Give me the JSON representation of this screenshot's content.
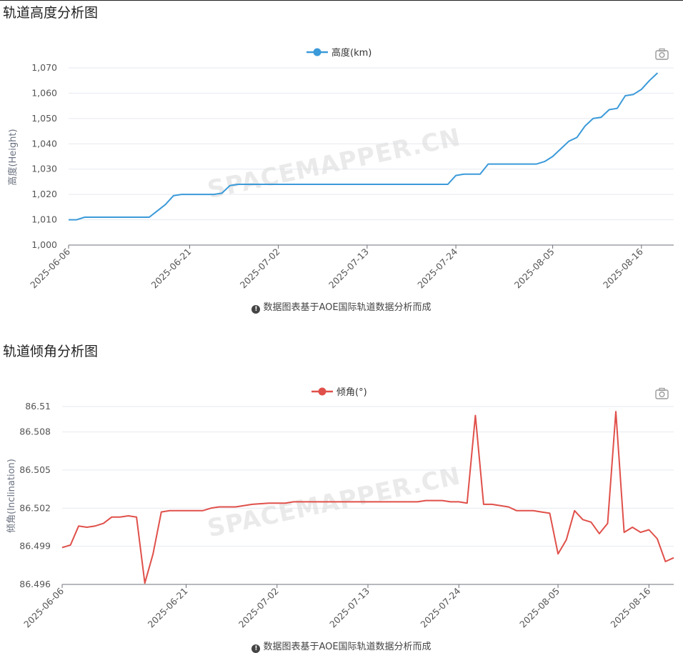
{
  "altitude": {
    "title": "轨道高度分析图",
    "footnote": "数据图表基于AOE国际轨道数据分析而成",
    "watermark": "SPACEMAPPER.CN",
    "icon": "camera-icon",
    "color": "#3b9ad9"
  },
  "inclination": {
    "title": "轨道倾角分析图",
    "footnote": "数据图表基于AOE国际轨道数据分析而成",
    "watermark": "SPACEMAPPER.CN",
    "icon": "camera-icon",
    "color": "#e0504a"
  },
  "chart_data": [
    {
      "type": "line",
      "title": "",
      "xlabel": "",
      "ylabel": "高度(Height)",
      "legend": "top-center",
      "grid": true,
      "x_start": "2025-06-06",
      "x_end": "2025-08-20",
      "ylim": [
        1000,
        1070
      ],
      "yticks": [
        1000,
        1010,
        1020,
        1030,
        1040,
        1050,
        1060,
        1070
      ],
      "ytick_labels": [
        "1,000",
        "1,010",
        "1,020",
        "1,030",
        "1,040",
        "1,050",
        "1,060",
        "1,070"
      ],
      "xtick_labels": [
        "2025-06-06",
        "2025-06-21",
        "2025-07-02",
        "2025-07-13",
        "2025-07-24",
        "2025-08-05",
        "2025-08-16"
      ],
      "series": [
        {
          "name": "高度(km)",
          "points": [
            [
              "2025-06-06",
              1010
            ],
            [
              "2025-06-07",
              1010
            ],
            [
              "2025-06-08",
              1011
            ],
            [
              "2025-06-09",
              1011
            ],
            [
              "2025-06-10",
              1011
            ],
            [
              "2025-06-11",
              1011
            ],
            [
              "2025-06-12",
              1011
            ],
            [
              "2025-06-13",
              1011
            ],
            [
              "2025-06-14",
              1011
            ],
            [
              "2025-06-15",
              1011
            ],
            [
              "2025-06-16",
              1011
            ],
            [
              "2025-06-17",
              1013.5
            ],
            [
              "2025-06-18",
              1016
            ],
            [
              "2025-06-19",
              1019.5
            ],
            [
              "2025-06-20",
              1020
            ],
            [
              "2025-06-21",
              1020
            ],
            [
              "2025-06-22",
              1020
            ],
            [
              "2025-06-23",
              1020
            ],
            [
              "2025-06-24",
              1020
            ],
            [
              "2025-06-25",
              1020.5
            ],
            [
              "2025-06-26",
              1023.5
            ],
            [
              "2025-06-27",
              1024
            ],
            [
              "2025-07-04",
              1024
            ],
            [
              "2025-07-10",
              1024
            ],
            [
              "2025-07-16",
              1024
            ],
            [
              "2025-07-22",
              1024
            ],
            [
              "2025-07-23",
              1024
            ],
            [
              "2025-07-24",
              1027.5
            ],
            [
              "2025-07-25",
              1028
            ],
            [
              "2025-07-26",
              1028
            ],
            [
              "2025-07-27",
              1028
            ],
            [
              "2025-07-28",
              1032
            ],
            [
              "2025-07-29",
              1032
            ],
            [
              "2025-07-31",
              1032
            ],
            [
              "2025-08-01",
              1032
            ],
            [
              "2025-08-02",
              1032
            ],
            [
              "2025-08-03",
              1032
            ],
            [
              "2025-08-04",
              1033
            ],
            [
              "2025-08-05",
              1035
            ],
            [
              "2025-08-06",
              1038
            ],
            [
              "2025-08-07",
              1041
            ],
            [
              "2025-08-08",
              1042.5
            ],
            [
              "2025-08-09",
              1047
            ],
            [
              "2025-08-10",
              1050
            ],
            [
              "2025-08-11",
              1050.5
            ],
            [
              "2025-08-12",
              1053.5
            ],
            [
              "2025-08-13",
              1054
            ],
            [
              "2025-08-14",
              1059
            ],
            [
              "2025-08-15",
              1059.5
            ],
            [
              "2025-08-16",
              1061.5
            ],
            [
              "2025-08-17",
              1065
            ],
            [
              "2025-08-18",
              1068
            ]
          ]
        }
      ]
    },
    {
      "type": "line",
      "title": "",
      "xlabel": "",
      "ylabel": "倾角(Inclination)",
      "legend": "top-center",
      "grid": true,
      "x_start": "2025-06-06",
      "x_end": "2025-08-19",
      "ylim": [
        86.496,
        86.51
      ],
      "yticks": [
        86.496,
        86.499,
        86.502,
        86.505,
        86.508,
        86.51
      ],
      "ytick_labels": [
        "86.496",
        "86.499",
        "86.502",
        "86.505",
        "86.508",
        "86.51"
      ],
      "xtick_labels": [
        "2025-06-06",
        "2025-06-21",
        "2025-07-02",
        "2025-07-13",
        "2025-07-24",
        "2025-08-05",
        "2025-08-16"
      ],
      "series": [
        {
          "name": "倾角(°)",
          "points": [
            [
              "2025-06-06",
              86.4989
            ],
            [
              "2025-06-07",
              86.4991
            ],
            [
              "2025-06-08",
              86.5006
            ],
            [
              "2025-06-09",
              86.5005
            ],
            [
              "2025-06-10",
              86.5006
            ],
            [
              "2025-06-11",
              86.5008
            ],
            [
              "2025-06-12",
              86.5013
            ],
            [
              "2025-06-13",
              86.5013
            ],
            [
              "2025-06-14",
              86.5014
            ],
            [
              "2025-06-15",
              86.5013
            ],
            [
              "2025-06-16",
              86.4961
            ],
            [
              "2025-06-17",
              86.4984
            ],
            [
              "2025-06-18",
              86.5017
            ],
            [
              "2025-06-19",
              86.5018
            ],
            [
              "2025-06-21",
              86.5018
            ],
            [
              "2025-06-23",
              86.5018
            ],
            [
              "2025-06-24",
              86.502
            ],
            [
              "2025-06-25",
              86.5021
            ],
            [
              "2025-06-27",
              86.5021
            ],
            [
              "2025-06-29",
              86.5023
            ],
            [
              "2025-07-01",
              86.5024
            ],
            [
              "2025-07-03",
              86.5024
            ],
            [
              "2025-07-04",
              86.5025
            ],
            [
              "2025-07-06",
              86.5025
            ],
            [
              "2025-07-19",
              86.5025
            ],
            [
              "2025-07-20",
              86.5026
            ],
            [
              "2025-07-22",
              86.5026
            ],
            [
              "2025-07-23",
              86.5025
            ],
            [
              "2025-07-24",
              86.5025
            ],
            [
              "2025-07-25",
              86.5024
            ],
            [
              "2025-07-26",
              86.5093
            ],
            [
              "2025-07-27",
              86.5023
            ],
            [
              "2025-07-28",
              86.5023
            ],
            [
              "2025-07-30",
              86.5021
            ],
            [
              "2025-07-31",
              86.5018
            ],
            [
              "2025-08-02",
              86.5018
            ],
            [
              "2025-08-03",
              86.5017
            ],
            [
              "2025-08-04",
              86.5016
            ],
            [
              "2025-08-05",
              86.4984
            ],
            [
              "2025-08-06",
              86.4995
            ],
            [
              "2025-08-07",
              86.5018
            ],
            [
              "2025-08-08",
              86.5011
            ],
            [
              "2025-08-09",
              86.5009
            ],
            [
              "2025-08-10",
              86.5
            ],
            [
              "2025-08-11",
              86.5008
            ],
            [
              "2025-08-12",
              86.5096
            ],
            [
              "2025-08-13",
              86.5001
            ],
            [
              "2025-08-14",
              86.5005
            ],
            [
              "2025-08-15",
              86.5001
            ],
            [
              "2025-08-16",
              86.5003
            ],
            [
              "2025-08-17",
              86.4996
            ],
            [
              "2025-08-18",
              86.4978
            ],
            [
              "2025-08-19",
              86.4981
            ]
          ]
        }
      ]
    }
  ]
}
